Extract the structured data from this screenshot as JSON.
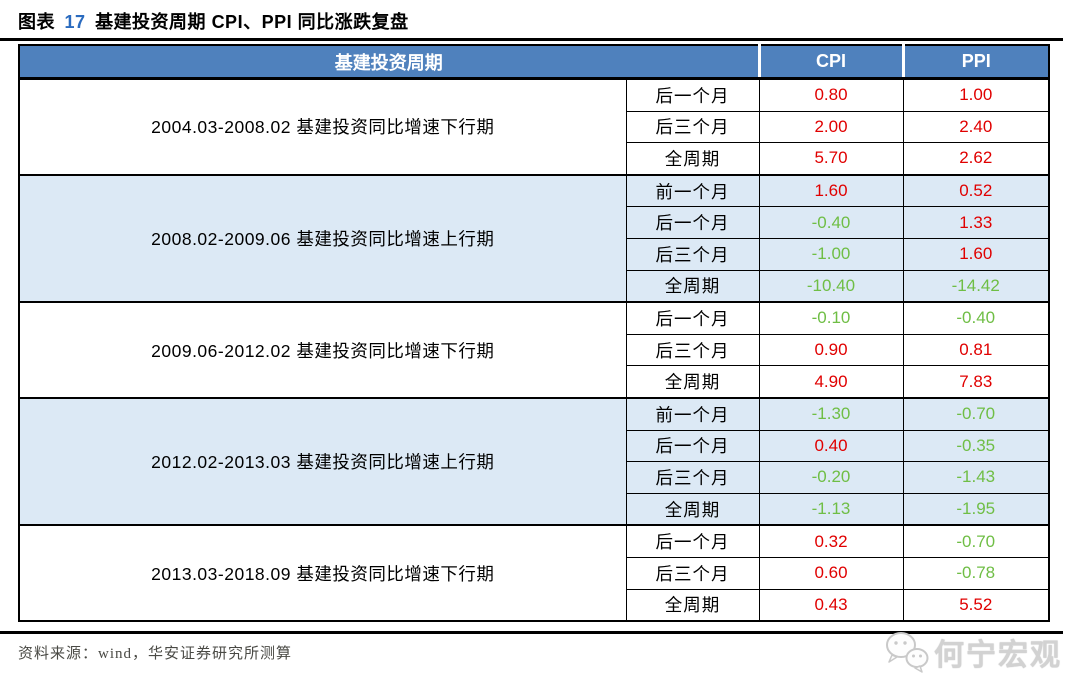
{
  "title": {
    "prefix": "图表",
    "number": "17",
    "text": "基建投资周期 CPI、PPI 同比涨跌复盘"
  },
  "table": {
    "header": {
      "period": "基建投资周期",
      "cpi": "CPI",
      "ppi": "PPI"
    },
    "sections": [
      {
        "period": "2004.03-2008.02 基建投资同比增速下行期",
        "shaded": false,
        "rows": [
          {
            "label": "后一个月",
            "cpi": "0.80",
            "ppi": "1.00"
          },
          {
            "label": "后三个月",
            "cpi": "2.00",
            "ppi": "2.40"
          },
          {
            "label": "全周期",
            "cpi": "5.70",
            "ppi": "2.62"
          }
        ]
      },
      {
        "period": "2008.02-2009.06 基建投资同比增速上行期",
        "shaded": true,
        "rows": [
          {
            "label": "前一个月",
            "cpi": "1.60",
            "ppi": "0.52"
          },
          {
            "label": "后一个月",
            "cpi": "-0.40",
            "ppi": "1.33"
          },
          {
            "label": "后三个月",
            "cpi": "-1.00",
            "ppi": "1.60"
          },
          {
            "label": "全周期",
            "cpi": "-10.40",
            "ppi": "-14.42"
          }
        ]
      },
      {
        "period": "2009.06-2012.02 基建投资同比增速下行期",
        "shaded": false,
        "rows": [
          {
            "label": "后一个月",
            "cpi": "-0.10",
            "ppi": "-0.40"
          },
          {
            "label": "后三个月",
            "cpi": "0.90",
            "ppi": "0.81"
          },
          {
            "label": "全周期",
            "cpi": "4.90",
            "ppi": "7.83"
          }
        ]
      },
      {
        "period": "2012.02-2013.03 基建投资同比增速上行期",
        "shaded": true,
        "rows": [
          {
            "label": "前一个月",
            "cpi": "-1.30",
            "ppi": "-0.70"
          },
          {
            "label": "后一个月",
            "cpi": "0.40",
            "ppi": "-0.35"
          },
          {
            "label": "后三个月",
            "cpi": "-0.20",
            "ppi": "-1.43"
          },
          {
            "label": "全周期",
            "cpi": "-1.13",
            "ppi": "-1.95"
          }
        ]
      },
      {
        "period": "2013.03-2018.09 基建投资同比增速下行期",
        "shaded": false,
        "rows": [
          {
            "label": "后一个月",
            "cpi": "0.32",
            "ppi": "-0.70"
          },
          {
            "label": "后三个月",
            "cpi": "0.60",
            "ppi": "-0.78"
          },
          {
            "label": "全周期",
            "cpi": "0.43",
            "ppi": "5.52"
          }
        ]
      }
    ]
  },
  "footer": {
    "source": "资料来源：wind，华安证券研究所测算",
    "watermark": "何宁宏观",
    "watermark_icon": "wechat-icon"
  },
  "colors": {
    "header_bg": "#4f81bd",
    "header_text": "#ffffff",
    "shaded_row_bg": "#dce9f5",
    "positive_value": "#e00000",
    "negative_value": "#6fbe45",
    "title_number_blue": "#2a6bbf",
    "source_text": "#4a4a45",
    "watermark_gray": "#d2d2d2"
  }
}
